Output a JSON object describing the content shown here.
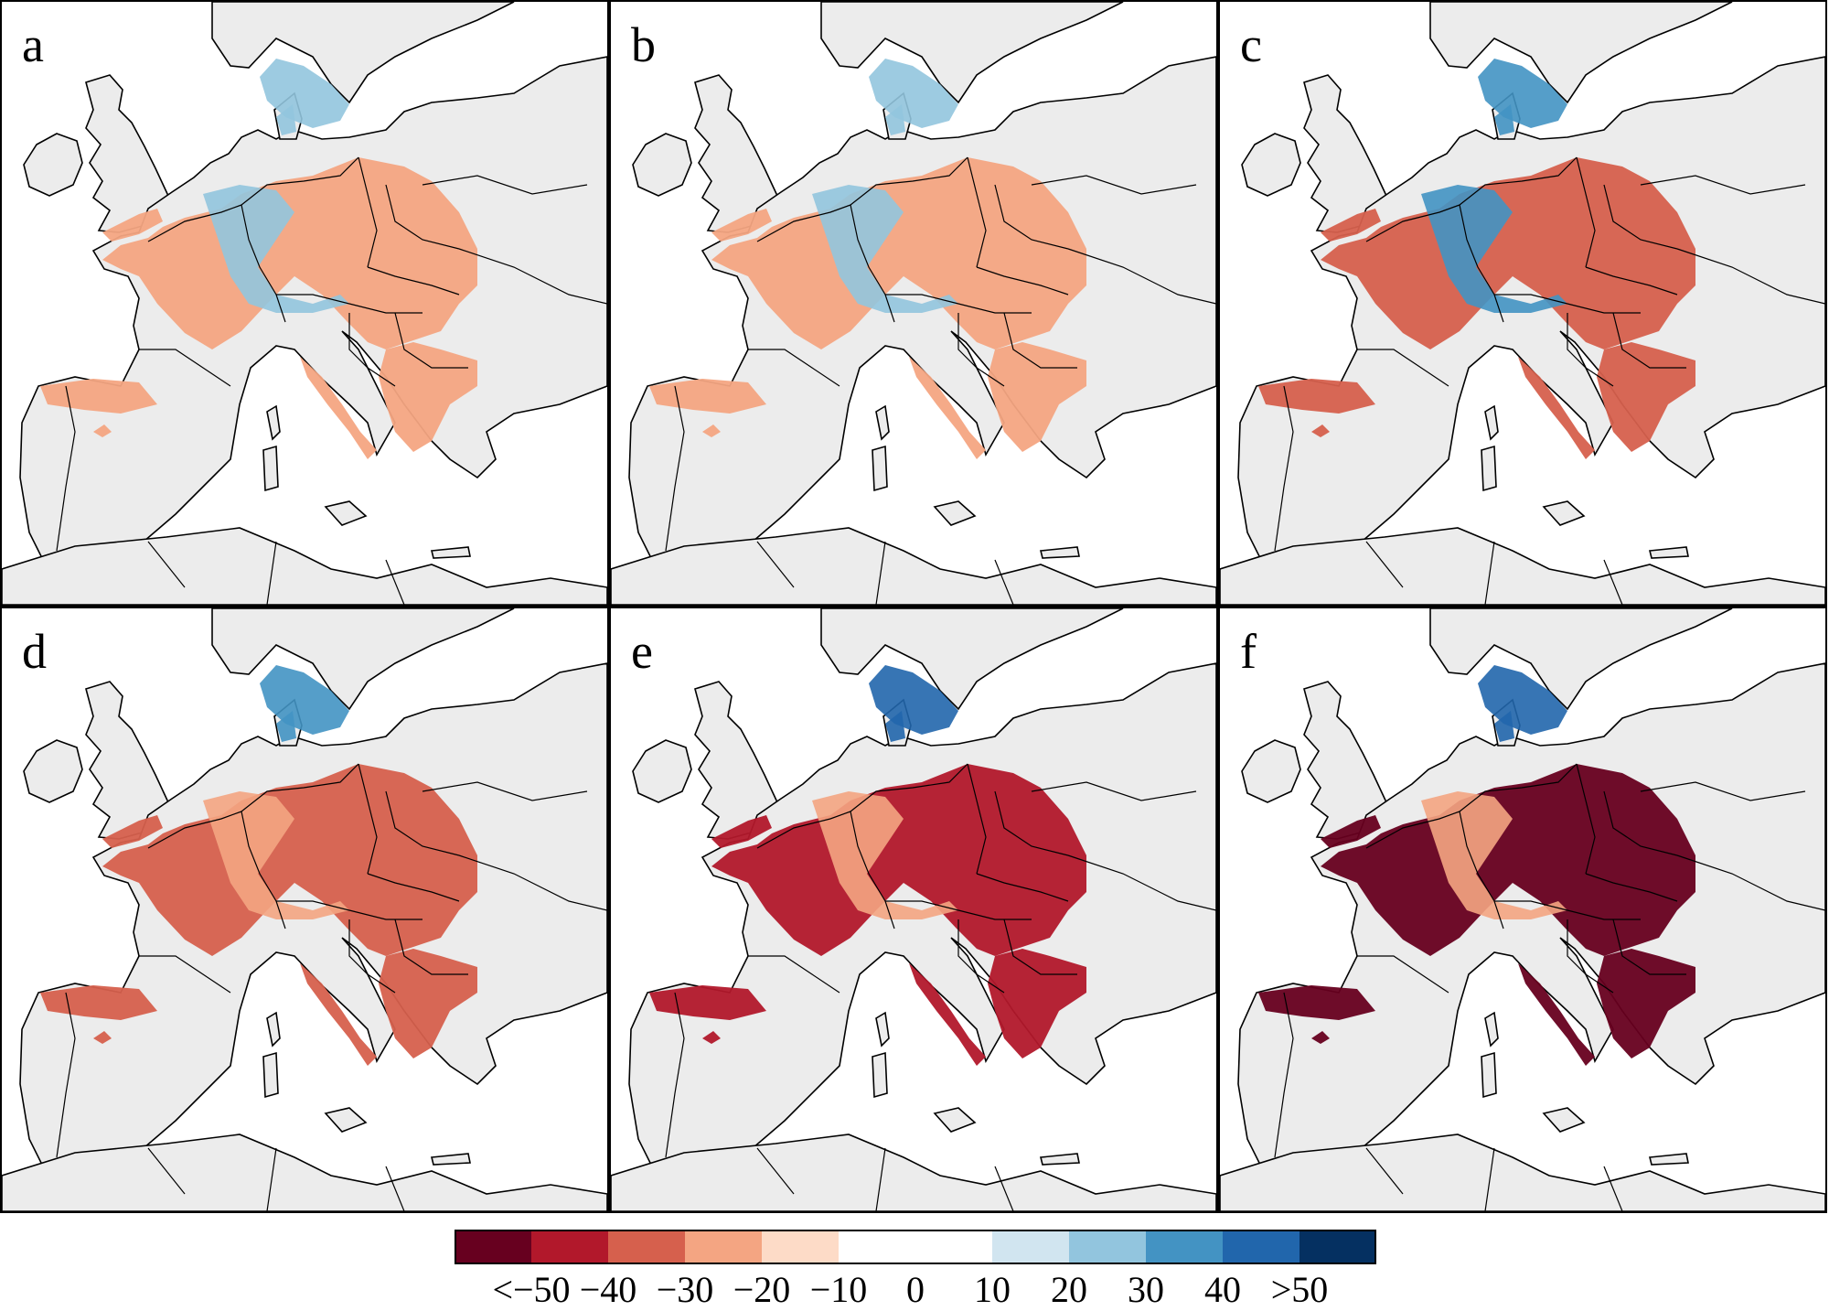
{
  "panels": [
    {
      "label": "a",
      "intensity": 0.35
    },
    {
      "label": "b",
      "intensity": 0.45
    },
    {
      "label": "c",
      "intensity": 0.55
    },
    {
      "label": "d",
      "intensity": 0.7
    },
    {
      "label": "e",
      "intensity": 0.85
    },
    {
      "label": "f",
      "intensity": 1.0
    }
  ],
  "colorbar": {
    "colors": [
      "#67001f",
      "#b2182b",
      "#d6604d",
      "#f4a582",
      "#fddbc7",
      "#ffffff",
      "#ffffff",
      "#d1e5f0",
      "#92c5de",
      "#4393c3",
      "#2166ac",
      "#053061"
    ],
    "tick_labels": [
      "<−50",
      "−40",
      "−30",
      "−20",
      "−10",
      "0",
      "10",
      "20",
      "30",
      "40",
      ">50"
    ]
  },
  "map_colors": {
    "land": "#ececec",
    "sea": "#ffffff",
    "border": "#000000"
  }
}
